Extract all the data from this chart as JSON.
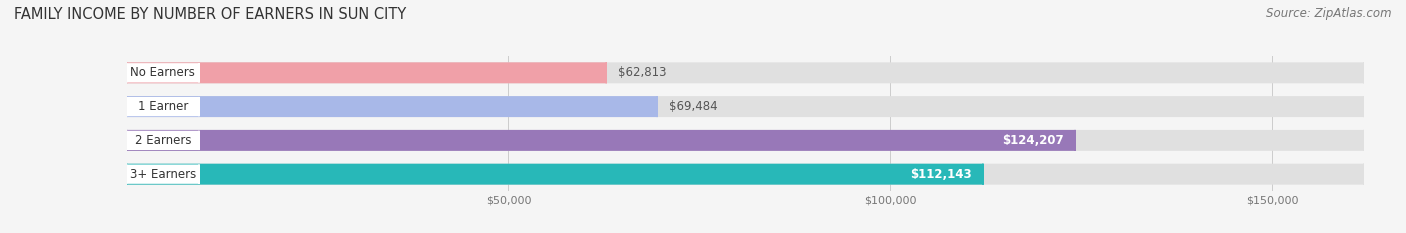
{
  "title": "FAMILY INCOME BY NUMBER OF EARNERS IN SUN CITY",
  "source": "Source: ZipAtlas.com",
  "categories": [
    "No Earners",
    "1 Earner",
    "2 Earners",
    "3+ Earners"
  ],
  "values": [
    62813,
    69484,
    124207,
    112143
  ],
  "bar_colors": [
    "#f0a0a8",
    "#a8b8e8",
    "#9878b8",
    "#28b8b8"
  ],
  "value_labels": [
    "$62,813",
    "$69,484",
    "$124,207",
    "$112,143"
  ],
  "label_inside": [
    false,
    false,
    true,
    true
  ],
  "xmin": 0,
  "xmax": 162000,
  "xticks": [
    50000,
    100000,
    150000
  ],
  "xtick_labels": [
    "$50,000",
    "$100,000",
    "$150,000"
  ],
  "background_color": "#f5f5f5",
  "bar_bg_color": "#e0e0e0",
  "bar_height": 0.62,
  "title_fontsize": 10.5,
  "source_fontsize": 8.5,
  "tick_fontsize": 8,
  "label_fontsize": 8.5,
  "value_fontsize": 8.5
}
